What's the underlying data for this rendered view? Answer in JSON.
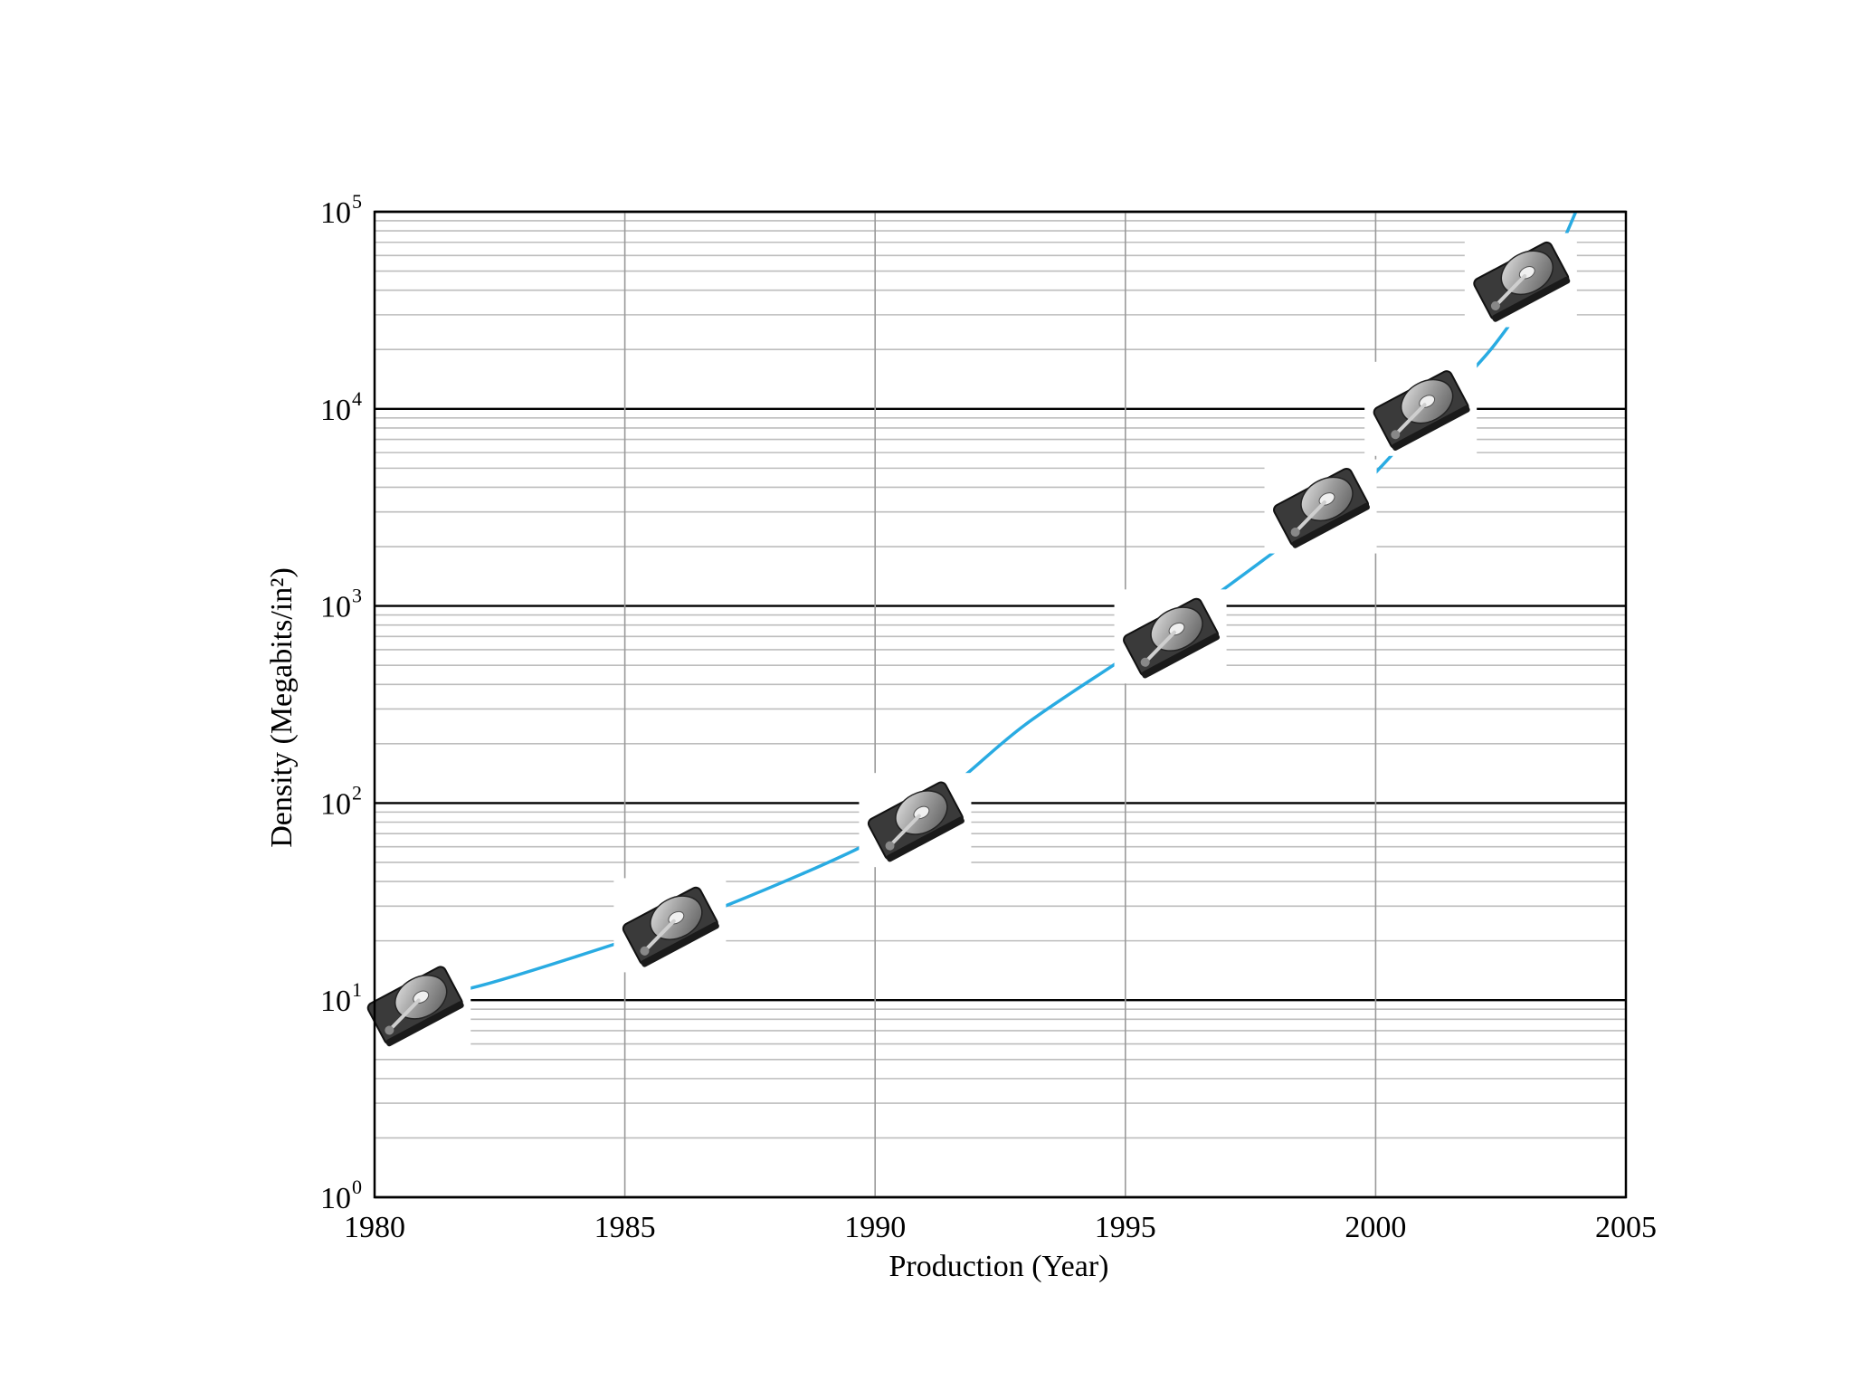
{
  "chart_data": {
    "type": "line",
    "title": "",
    "xlabel": "Production (Year)",
    "ylabel": "Density (Megabits/in²)",
    "x_ticks": [
      "1980",
      "1985",
      "1990",
      "1995",
      "2000",
      "2005"
    ],
    "y_ticks": [
      {
        "base": "10",
        "exp": "0",
        "value": 1
      },
      {
        "base": "10",
        "exp": "1",
        "value": 10
      },
      {
        "base": "10",
        "exp": "2",
        "value": 100
      },
      {
        "base": "10",
        "exp": "3",
        "value": 1000
      },
      {
        "base": "10",
        "exp": "4",
        "value": 10000
      },
      {
        "base": "10",
        "exp": "5",
        "value": 100000
      }
    ],
    "xlim": [
      1980,
      2005
    ],
    "ylim": [
      1,
      100000
    ],
    "y_scale": "log",
    "grid": true,
    "line_color": "#29abe2",
    "series": [
      {
        "x": [
          1980.7,
          1982.2,
          1985.0,
          1987.0,
          1990.0,
          1991.5,
          1993.0,
          1995.0,
          1996.5,
          1998.0,
          1999.5,
          2000.5,
          2001.5,
          2002.3,
          2003.0,
          2003.6,
          2004.0
        ],
        "y": [
          10,
          12,
          20,
          30,
          65,
          120,
          250,
          550,
          1000,
          1900,
          3600,
          6500,
          12000,
          20000,
          35000,
          60000,
          100000
        ]
      }
    ],
    "markers": [
      {
        "x": 1980.8,
        "y": 9.5,
        "icon": "hard-drive-icon"
      },
      {
        "x": 1985.9,
        "y": 24,
        "icon": "hard-drive-icon"
      },
      {
        "x": 1990.8,
        "y": 82,
        "icon": "hard-drive-icon"
      },
      {
        "x": 1995.9,
        "y": 700,
        "icon": "hard-drive-icon"
      },
      {
        "x": 1998.9,
        "y": 3200,
        "icon": "hard-drive-icon"
      },
      {
        "x": 2000.9,
        "y": 10000,
        "icon": "hard-drive-icon"
      },
      {
        "x": 2002.9,
        "y": 45000,
        "icon": "hard-drive-icon"
      }
    ]
  }
}
